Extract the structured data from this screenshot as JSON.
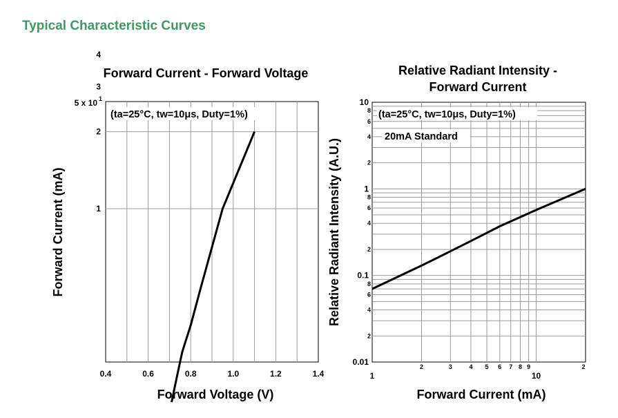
{
  "page": {
    "section_title": "Typical Characteristic Curves"
  },
  "chart_data": [
    {
      "type": "line",
      "title": "Forward Current - Forward Voltage",
      "xlabel": "Forward Voltage (V)",
      "ylabel": "Forward Current (mA)",
      "x_scale": "linear",
      "y_scale": "log",
      "xlim": [
        0.4,
        1.4
      ],
      "x_ticks": [
        0.4,
        0.6,
        0.8,
        1.0,
        1.2,
        1.4
      ],
      "x_tick_labels": [
        "0.4",
        "0.6",
        "0.8",
        "1.0",
        "1.2",
        "1.4"
      ],
      "y_ticks": [
        50,
        40,
        30,
        20,
        10
      ],
      "y_tick_labels": [
        "5 x 10",
        "4",
        "3",
        "2",
        "1"
      ],
      "y_exponent_label": "1",
      "annotation": "(ta=25°C, tw=10μs, Duty=1%)",
      "grid": true,
      "series": [
        {
          "x": [
            0.71,
            0.735,
            0.76,
            0.8,
            0.85,
            0.95,
            1.1
          ],
          "y": [
            1.75,
            2.2,
            2.75,
            3.5,
            5.0,
            10,
            20
          ]
        }
      ]
    },
    {
      "type": "line",
      "title": "Relative Radiant Intensity -\nForward Current",
      "title_lines": [
        "Relative Radiant Intensity -",
        "Forward Current"
      ],
      "xlabel": "Forward Current (mA)",
      "ylabel": "Relative Radiant Intensity (A.U.)",
      "x_scale": "log",
      "y_scale": "log",
      "xlim": [
        1,
        20
      ],
      "ylim": [
        0.01,
        10
      ],
      "x_major_labels": [
        {
          "x": 1,
          "label": "1"
        },
        {
          "x": 10,
          "label": "10"
        }
      ],
      "x_minor_labels": [
        {
          "x": 2,
          "label": "2"
        },
        {
          "x": 3,
          "label": "3"
        },
        {
          "x": 4,
          "label": "4"
        },
        {
          "x": 5,
          "label": "5"
        },
        {
          "x": 6,
          "label": "6"
        },
        {
          "x": 7,
          "label": "7"
        },
        {
          "x": 8,
          "label": "8"
        },
        {
          "x": 9,
          "label": "9"
        },
        {
          "x": 20,
          "label": "2"
        }
      ],
      "y_major_labels": [
        {
          "y": 10,
          "label": "10"
        },
        {
          "y": 1,
          "label": "1"
        },
        {
          "y": 0.1,
          "label": "0.1"
        },
        {
          "y": 0.01,
          "label": "0.01"
        }
      ],
      "y_minor_labels": [
        {
          "y": 8,
          "label": "8"
        },
        {
          "y": 6,
          "label": "6"
        },
        {
          "y": 4,
          "label": "4"
        },
        {
          "y": 2,
          "label": "2"
        },
        {
          "y": 0.8,
          "label": "8"
        },
        {
          "y": 0.6,
          "label": "6"
        },
        {
          "y": 0.4,
          "label": "4"
        },
        {
          "y": 0.2,
          "label": "2"
        },
        {
          "y": 0.08,
          "label": "8"
        },
        {
          "y": 0.06,
          "label": "6"
        },
        {
          "y": 0.04,
          "label": "4"
        },
        {
          "y": 0.02,
          "label": "2"
        }
      ],
      "annotations": [
        "(ta=25°C, tw=10μs, Duty=1%)",
        "20mA Standard"
      ],
      "grid": true,
      "series": [
        {
          "x": [
            1,
            2,
            3,
            4,
            6,
            10,
            20
          ],
          "y": [
            0.07,
            0.13,
            0.19,
            0.25,
            0.37,
            0.57,
            1.0
          ]
        }
      ]
    }
  ]
}
